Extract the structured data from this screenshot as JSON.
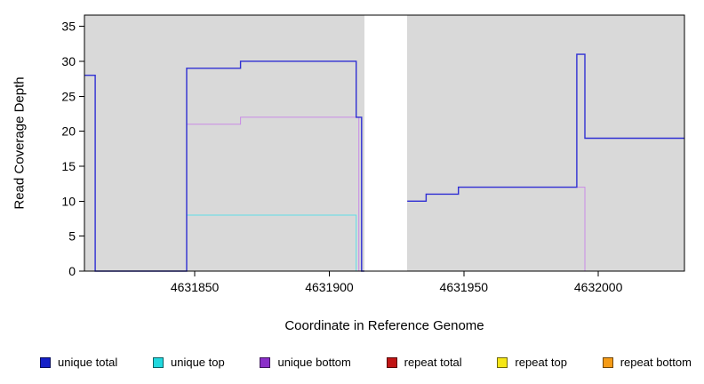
{
  "chart_data": {
    "type": "line",
    "title": "",
    "xlabel": "Coordinate in Reference Genome",
    "ylabel": "Read Coverage Depth",
    "xlim": [
      4631809,
      4632032
    ],
    "ylim": [
      0,
      36.6
    ],
    "x_ticks": [
      4631850,
      4631900,
      4631950,
      4632000
    ],
    "y_ticks": [
      0,
      5,
      10,
      15,
      20,
      25,
      30,
      35
    ],
    "plot_background": "#d9d9d9",
    "page_background": "#ffffff",
    "box_color": "#000000",
    "gap_region": {
      "start": 4631913,
      "end": 4631929,
      "fill": "#ffffff"
    },
    "series": [
      {
        "name": "repeat top",
        "color": "#f2e40e",
        "width": 1,
        "segments": [
          [
            [
              4631809,
              0
            ],
            [
              4631913,
              0
            ]
          ],
          [
            [
              4631929,
              0
            ],
            [
              4632032,
              0
            ]
          ]
        ]
      },
      {
        "name": "repeat bottom",
        "color": "#ff9c1e",
        "width": 1,
        "segments": [
          [
            [
              4631846,
              0
            ],
            [
              4631911,
              0
            ]
          ]
        ]
      },
      {
        "name": "repeat total",
        "color": "#c42525",
        "width": 1,
        "segments": [
          [
            [
              4631995,
              0
            ],
            [
              4632032,
              0
            ]
          ]
        ]
      },
      {
        "name": "unique bottom",
        "color": "#c98ae6",
        "width": 1,
        "segments": [
          [
            [
              4631847,
              0
            ],
            [
              4631847,
              21
            ],
            [
              4631867,
              21
            ],
            [
              4631867,
              22
            ],
            [
              4631911,
              22
            ],
            [
              4631911,
              0
            ]
          ],
          [
            [
              4631929,
              10
            ],
            [
              4631936,
              10
            ],
            [
              4631936,
              11
            ],
            [
              4631948,
              11
            ],
            [
              4631948,
              12
            ],
            [
              4631995,
              12
            ],
            [
              4631995,
              0
            ]
          ]
        ]
      },
      {
        "name": "unique top",
        "color": "#5fdde8",
        "width": 1,
        "segments": [
          [
            [
              4631847,
              0
            ],
            [
              4631847,
              8
            ],
            [
              4631910,
              8
            ],
            [
              4631910,
              0
            ]
          ],
          [
            [
              4631929,
              0
            ],
            [
              4631995,
              0
            ]
          ]
        ]
      },
      {
        "name": "unique total",
        "color": "#2f2fd3",
        "width": 1.4,
        "segments": [
          [
            [
              4631809,
              28
            ],
            [
              4631813,
              28
            ],
            [
              4631813,
              0
            ],
            [
              4631847,
              0
            ],
            [
              4631847,
              29
            ],
            [
              4631867,
              29
            ],
            [
              4631867,
              30
            ],
            [
              4631910,
              30
            ],
            [
              4631910,
              22
            ],
            [
              4631912,
              22
            ],
            [
              4631912,
              0
            ],
            [
              4631913,
              0
            ]
          ],
          [
            [
              4631929,
              10
            ],
            [
              4631936,
              10
            ],
            [
              4631936,
              11
            ],
            [
              4631948,
              11
            ],
            [
              4631948,
              12
            ],
            [
              4631992,
              12
            ],
            [
              4631992,
              31
            ],
            [
              4631995,
              31
            ],
            [
              4631995,
              19
            ],
            [
              4632032,
              19
            ]
          ]
        ]
      }
    ],
    "legend": [
      {
        "label": "unique total",
        "color": "#1420c8"
      },
      {
        "label": "unique top",
        "color": "#21d8de"
      },
      {
        "label": "unique bottom",
        "color": "#8b2fc9"
      },
      {
        "label": "repeat total",
        "color": "#c01414"
      },
      {
        "label": "repeat top",
        "color": "#f5e616"
      },
      {
        "label": "repeat bottom",
        "color": "#f59b16"
      }
    ]
  }
}
